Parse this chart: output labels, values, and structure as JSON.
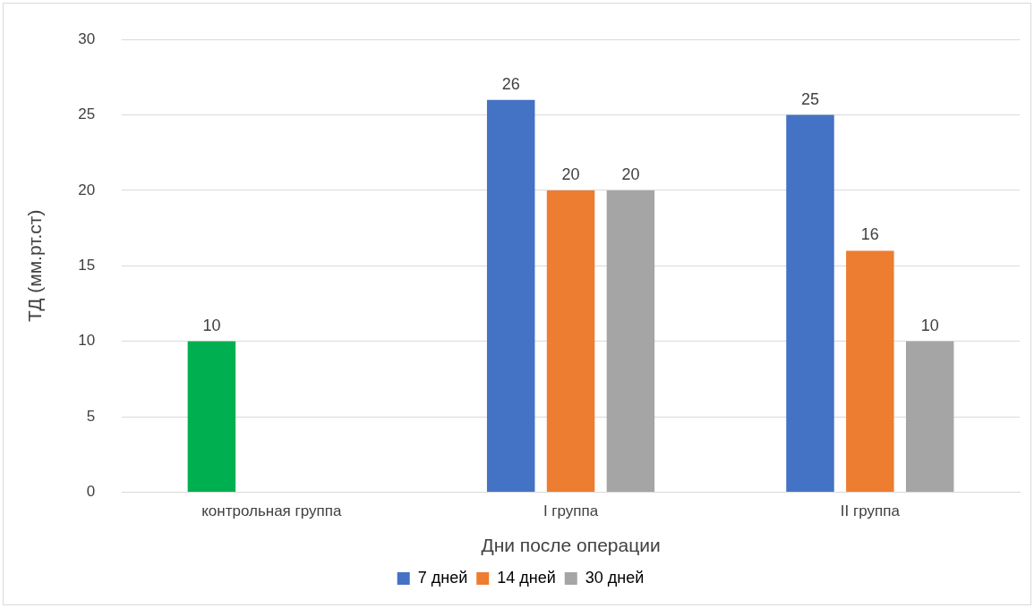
{
  "chart_data": {
    "type": "bar",
    "xlabel": "Дни после операции",
    "ylabel": "ТД (мм.рт.ст)",
    "categories": [
      "контрольная группа",
      "I группа",
      "II группа"
    ],
    "series": [
      {
        "name": "7 дней",
        "color": "#4472c4",
        "colors": [
          "#00b050",
          "#4472c4",
          "#4472c4"
        ],
        "values": [
          10,
          26,
          25
        ]
      },
      {
        "name": "14 дней",
        "color": "#ed7d31",
        "values": [
          null,
          20,
          16
        ]
      },
      {
        "name": "30 дней",
        "color": "#a5a5a5",
        "values": [
          null,
          20,
          10
        ]
      }
    ],
    "ylim": [
      0,
      30
    ],
    "yticks": [
      0,
      5,
      10,
      15,
      20,
      25,
      30
    ],
    "grid": "y",
    "legend": "bottom",
    "data_labels": true
  }
}
